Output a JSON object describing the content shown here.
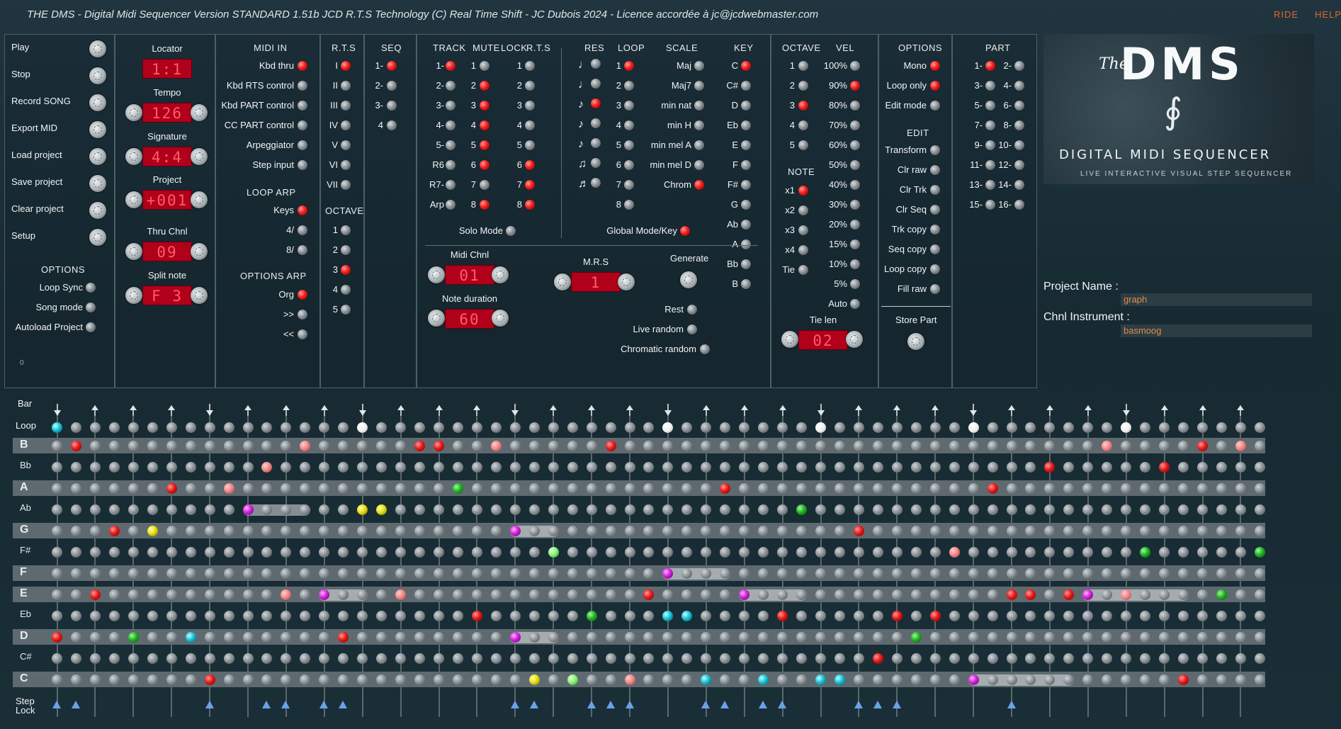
{
  "window": {
    "title": "THE DMS - Digital Midi Sequencer Version STANDARD 1.51b JCD R.T.S Technology (C) Real Time Shift - JC Dubois 2024 - Licence accordée à jc@jcdwebmaster.com",
    "ride": "RIDE",
    "help": "HELP"
  },
  "main_menu": [
    {
      "label": "Play"
    },
    {
      "label": "Stop"
    },
    {
      "label": "Record SONG"
    },
    {
      "label": "Export MID"
    },
    {
      "label": "Load project"
    },
    {
      "label": "Save project"
    },
    {
      "label": "Clear project"
    },
    {
      "label": "Setup"
    }
  ],
  "options_left": {
    "header": "OPTIONS",
    "items": [
      {
        "label": "Loop Sync",
        "on": false
      },
      {
        "label": "Song mode",
        "on": false
      },
      {
        "label": "Autoload Project",
        "on": false
      }
    ],
    "counter": "0"
  },
  "transport": {
    "locator": {
      "label": "Locator",
      "value": "1:1"
    },
    "tempo": {
      "label": "Tempo",
      "value": "126"
    },
    "signature": {
      "label": "Signature",
      "value": "4:4"
    },
    "project": {
      "label": "Project",
      "value": "+001"
    },
    "thru": {
      "label": "Thru Chnl",
      "value": "09"
    },
    "split": {
      "label": "Split note",
      "value": "F 3"
    }
  },
  "midi_in": {
    "header": "MIDI IN",
    "items": [
      {
        "label": "Kbd thru",
        "on": true
      },
      {
        "label": "Kbd RTS control",
        "on": false
      },
      {
        "label": "Kbd PART control",
        "on": false
      },
      {
        "label": "CC PART control",
        "on": false
      },
      {
        "label": "Arpeggiator",
        "on": false
      },
      {
        "label": "Step input",
        "on": false
      }
    ],
    "loop_arp_header": "LOOP ARP",
    "loop_arp": [
      {
        "label": "Keys",
        "on": true
      },
      {
        "label": "4/",
        "on": false
      },
      {
        "label": "8/",
        "on": false
      }
    ],
    "options_arp_header": "OPTIONS ARP",
    "options_arp": [
      {
        "label": "Org",
        "on": true
      },
      {
        "label": ">>",
        "on": false
      },
      {
        "label": "<<",
        "on": false
      }
    ]
  },
  "rts": {
    "header": "R.T.S",
    "items": [
      {
        "label": "I",
        "on": true
      },
      {
        "label": "II",
        "on": false
      },
      {
        "label": "III",
        "on": false
      },
      {
        "label": "IV",
        "on": false
      },
      {
        "label": "V",
        "on": false
      },
      {
        "label": "VI",
        "on": false
      },
      {
        "label": "VII",
        "on": false
      }
    ],
    "octave_header": "OCTAVE",
    "octaves": [
      {
        "label": "1",
        "on": false
      },
      {
        "label": "2",
        "on": false
      },
      {
        "label": "3",
        "on": true
      },
      {
        "label": "4",
        "on": false
      },
      {
        "label": "5",
        "on": false
      }
    ]
  },
  "seq": {
    "header": "SEQ",
    "items": [
      {
        "label": "1-",
        "on": true
      },
      {
        "label": "2-",
        "on": false
      },
      {
        "label": "3-",
        "on": false
      },
      {
        "label": "4",
        "on": false
      }
    ]
  },
  "track_panel": {
    "track_header": "TRACK",
    "mute_header": "MUTE",
    "lock_header": "LOCK",
    "rts_header": "R.T.S",
    "tracks": [
      {
        "t": "1-",
        "t_on": true,
        "m": "1",
        "m_on": false,
        "r": "1",
        "r_on": false
      },
      {
        "t": "2-",
        "t_on": false,
        "m": "2",
        "m_on": true,
        "r": "2",
        "r_on": false
      },
      {
        "t": "3-",
        "t_on": false,
        "m": "3",
        "m_on": true,
        "r": "3",
        "r_on": false
      },
      {
        "t": "4-",
        "t_on": false,
        "m": "4",
        "m_on": true,
        "r": "4",
        "r_on": false
      },
      {
        "t": "5-",
        "t_on": false,
        "m": "5",
        "m_on": true,
        "r": "5",
        "r_on": false
      },
      {
        "t": "R6",
        "t_on": false,
        "m": "6",
        "m_on": true,
        "r": "6",
        "r_on": true
      },
      {
        "t": "R7-",
        "t_on": false,
        "m": "7",
        "m_on": false,
        "r": "7",
        "r_on": true
      },
      {
        "t": "Arp",
        "t_on": false,
        "m": "8",
        "m_on": true,
        "r": "8",
        "r_on": true
      }
    ],
    "solo": "Solo Mode",
    "midi_chnl": {
      "label": "Midi Chnl",
      "value": "01"
    },
    "note_duration": {
      "label": "Note duration",
      "value": "60"
    }
  },
  "res_panel": {
    "res_header": "RES",
    "loop_header": "LOOP",
    "scale_header": "SCALE",
    "key_header": "KEY",
    "res": [
      {
        "icon": "whole-note",
        "on": false
      },
      {
        "icon": "half-note",
        "on": false
      },
      {
        "icon": "quarter-note",
        "on": true
      },
      {
        "icon": "eighth-note",
        "on": false
      },
      {
        "icon": "sixteenth-note",
        "on": false
      },
      {
        "icon": "triplet-eighth",
        "on": false
      },
      {
        "icon": "triplet-sixteenth",
        "on": false
      }
    ],
    "loop": [
      {
        "label": "1",
        "on": true
      },
      {
        "label": "2",
        "on": false
      },
      {
        "label": "3",
        "on": false
      },
      {
        "label": "4",
        "on": false
      },
      {
        "label": "5",
        "on": false
      },
      {
        "label": "6",
        "on": false
      },
      {
        "label": "7",
        "on": false
      },
      {
        "label": "8",
        "on": false
      }
    ],
    "scale": [
      {
        "label": "Maj",
        "on": false
      },
      {
        "label": "Maj7",
        "on": false
      },
      {
        "label": "min nat",
        "on": false
      },
      {
        "label": "min H",
        "on": false
      },
      {
        "label": "min mel A",
        "on": false
      },
      {
        "label": "min mel D",
        "on": false
      },
      {
        "label": "Chrom",
        "on": true
      }
    ],
    "key": [
      {
        "label": "C",
        "on": true
      },
      {
        "label": "C#",
        "on": false
      },
      {
        "label": "D",
        "on": false
      },
      {
        "label": "Eb",
        "on": false
      },
      {
        "label": "E",
        "on": false
      },
      {
        "label": "F",
        "on": false
      },
      {
        "label": "F#",
        "on": false
      },
      {
        "label": "G",
        "on": false
      },
      {
        "label": "Ab",
        "on": false
      },
      {
        "label": "A",
        "on": false
      },
      {
        "label": "Bb",
        "on": false
      },
      {
        "label": "B",
        "on": false
      }
    ],
    "global": "Global Mode/Key",
    "mrs": {
      "label": "M.R.S",
      "value": "1"
    },
    "generate": "Generate",
    "rest": "Rest",
    "live_random": "Live random",
    "chromatic_random": "Chromatic random"
  },
  "octave_panel": {
    "octave_header": "OCTAVE",
    "vel_header": "VEL",
    "octaves": [
      {
        "label": "1",
        "on": false
      },
      {
        "label": "2",
        "on": false
      },
      {
        "label": "3",
        "on": true
      },
      {
        "label": "4",
        "on": false
      },
      {
        "label": "5",
        "on": false
      }
    ],
    "note_header": "NOTE",
    "notes": [
      {
        "label": "x1",
        "on": true
      },
      {
        "label": "x2",
        "on": false
      },
      {
        "label": "x3",
        "on": false
      },
      {
        "label": "x4",
        "on": false
      },
      {
        "label": "Tie",
        "on": false
      }
    ],
    "vel": [
      {
        "label": "100%",
        "on": false
      },
      {
        "label": "90%",
        "on": true
      },
      {
        "label": "80%",
        "on": false
      },
      {
        "label": "70%",
        "on": false
      },
      {
        "label": "60%",
        "on": false
      },
      {
        "label": "50%",
        "on": false
      },
      {
        "label": "40%",
        "on": false
      },
      {
        "label": "30%",
        "on": false
      },
      {
        "label": "20%",
        "on": false
      },
      {
        "label": "15%",
        "on": false
      },
      {
        "label": "10%",
        "on": false
      },
      {
        "label": "5%",
        "on": false
      },
      {
        "label": "Auto",
        "on": false
      }
    ],
    "tie_len": {
      "label": "Tie len",
      "value": "02"
    }
  },
  "options_panel": {
    "header": "OPTIONS",
    "items": [
      {
        "label": "Mono",
        "on": true
      },
      {
        "label": "Loop only",
        "on": true
      },
      {
        "label": "Edit mode",
        "on": false
      }
    ],
    "edit_header": "EDIT",
    "edit": [
      {
        "label": "Transform"
      },
      {
        "label": "Clr raw"
      },
      {
        "label": "Clr Trk"
      },
      {
        "label": "Clr Seq"
      },
      {
        "label": "Trk copy"
      },
      {
        "label": "Seq copy"
      },
      {
        "label": "Loop copy"
      },
      {
        "label": "Fill raw"
      }
    ],
    "store": "Store Part"
  },
  "part_panel": {
    "header": "PART",
    "items": [
      {
        "label": "1-",
        "on": true
      },
      {
        "label": "2-",
        "on": false
      },
      {
        "label": "3-",
        "on": false
      },
      {
        "label": "4-",
        "on": false
      },
      {
        "label": "5-",
        "on": false
      },
      {
        "label": "6-",
        "on": false
      },
      {
        "label": "7-",
        "on": false
      },
      {
        "label": "8-",
        "on": false
      },
      {
        "label": "9-",
        "on": false
      },
      {
        "label": "10-",
        "on": false
      },
      {
        "label": "11-",
        "on": false
      },
      {
        "label": "12-",
        "on": false
      },
      {
        "label": "13-",
        "on": false
      },
      {
        "label": "14-",
        "on": false
      },
      {
        "label": "15-",
        "on": false
      },
      {
        "label": "16-",
        "on": false
      }
    ]
  },
  "logo": {
    "the": "The",
    "name": "DMS",
    "tag": "DIGITAL MIDI SEQUENCER",
    "sub": "LIVE INTERACTIVE VISUAL STEP SEQUENCER"
  },
  "project_info": {
    "name_label": "Project Name :",
    "name_value": "graph",
    "instr_label": "Chnl Instrument :",
    "instr_value": "basmoog"
  },
  "grid": {
    "bar_label": "Bar",
    "loop_label": "Loop",
    "step_lock_label": "Step\nLock",
    "steps": 64,
    "bar_markers": [
      0,
      8,
      16,
      24,
      32,
      40,
      48,
      56
    ],
    "loop_on": [
      0
    ],
    "loop_white": [
      16,
      32,
      40,
      48,
      56
    ],
    "step_lock": [
      0,
      1,
      8,
      11,
      12,
      14,
      15,
      24,
      25,
      28,
      29,
      30,
      34,
      35,
      37,
      38,
      42,
      43,
      44,
      50
    ],
    "rows": [
      {
        "note": "B",
        "big": true,
        "cells": [
          [
            1,
            "r"
          ],
          [
            13,
            "p"
          ],
          [
            19,
            "r"
          ],
          [
            20,
            "r"
          ],
          [
            23,
            "p"
          ],
          [
            29,
            "r"
          ],
          [
            55,
            "p"
          ],
          [
            60,
            "r"
          ],
          [
            62,
            "p"
          ]
        ]
      },
      {
        "note": "Bb",
        "big": false,
        "cells": [
          [
            11,
            "p"
          ],
          [
            52,
            "r"
          ],
          [
            58,
            "r"
          ]
        ]
      },
      {
        "note": "A",
        "big": true,
        "cells": [
          [
            6,
            "r"
          ],
          [
            9,
            "p"
          ],
          [
            21,
            "g"
          ],
          [
            35,
            "r"
          ],
          [
            49,
            "r"
          ]
        ]
      },
      {
        "note": "Ab",
        "big": false,
        "cells": [
          [
            10,
            "m"
          ],
          [
            16,
            "y"
          ],
          [
            17,
            "y"
          ],
          [
            39,
            "g"
          ]
        ],
        "holds": [
          [
            10,
            13
          ]
        ]
      },
      {
        "note": "G",
        "big": true,
        "cells": [
          [
            3,
            "r"
          ],
          [
            5,
            "y"
          ],
          [
            24,
            "m"
          ],
          [
            42,
            "r"
          ]
        ],
        "holds": [
          [
            24,
            26
          ]
        ]
      },
      {
        "note": "F#",
        "big": false,
        "cells": [
          [
            26,
            "G"
          ],
          [
            47,
            "p"
          ],
          [
            57,
            "g"
          ],
          [
            63,
            "g"
          ]
        ]
      },
      {
        "note": "F",
        "big": true,
        "cells": [
          [
            32,
            "m"
          ]
        ],
        "holds": [
          [
            32,
            35
          ]
        ]
      },
      {
        "note": "E",
        "big": true,
        "cells": [
          [
            2,
            "r"
          ],
          [
            12,
            "p"
          ],
          [
            14,
            "m"
          ],
          [
            18,
            "p"
          ],
          [
            31,
            "r"
          ],
          [
            36,
            "m"
          ],
          [
            50,
            "r"
          ],
          [
            51,
            "r"
          ],
          [
            53,
            "r"
          ],
          [
            54,
            "m"
          ],
          [
            56,
            "p"
          ],
          [
            61,
            "g"
          ]
        ],
        "holds": [
          [
            14,
            16
          ],
          [
            36,
            39
          ],
          [
            54,
            59
          ]
        ]
      },
      {
        "note": "Eb",
        "big": false,
        "cells": [
          [
            22,
            "r"
          ],
          [
            28,
            "g"
          ],
          [
            32,
            "c"
          ],
          [
            33,
            "c"
          ],
          [
            38,
            "r"
          ],
          [
            44,
            "r"
          ],
          [
            46,
            "r"
          ]
        ]
      },
      {
        "note": "D",
        "big": true,
        "cells": [
          [
            0,
            "r"
          ],
          [
            4,
            "g"
          ],
          [
            7,
            "c"
          ],
          [
            15,
            "r"
          ],
          [
            24,
            "m"
          ],
          [
            45,
            "g"
          ]
        ],
        "holds": [
          [
            24,
            26
          ]
        ]
      },
      {
        "note": "C#",
        "big": false,
        "cells": [
          [
            43,
            "r"
          ]
        ]
      },
      {
        "note": "C",
        "big": true,
        "cells": [
          [
            8,
            "r"
          ],
          [
            25,
            "y"
          ],
          [
            27,
            "G"
          ],
          [
            30,
            "p"
          ],
          [
            34,
            "c"
          ],
          [
            37,
            "c"
          ],
          [
            40,
            "c"
          ],
          [
            41,
            "c"
          ],
          [
            48,
            "m"
          ],
          [
            59,
            "r"
          ]
        ],
        "holds": [
          [
            48,
            53
          ]
        ]
      }
    ]
  }
}
